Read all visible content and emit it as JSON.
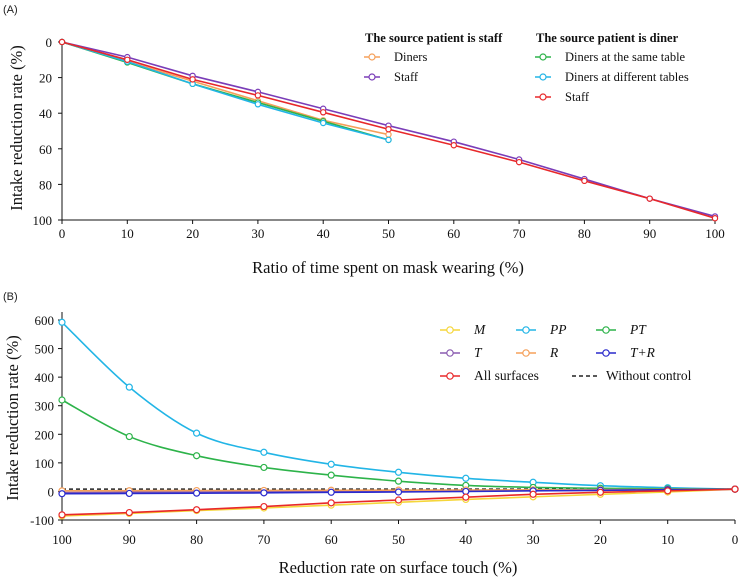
{
  "chart_data": [
    {
      "panel_label": "(A)",
      "type": "line",
      "xlabel": "Ratio of time spent on mask wearing  (%)",
      "ylabel": "Intake reduction rate (%)",
      "xlim": [
        0,
        100
      ],
      "ylim": [
        0,
        100
      ],
      "y_inverted": true,
      "xticks": [
        0,
        10,
        20,
        30,
        40,
        50,
        60,
        70,
        80,
        90,
        100
      ],
      "yticks": [
        0,
        20,
        40,
        60,
        80,
        100
      ],
      "legend_groups": [
        {
          "title": "The source patient is staff",
          "entries": [
            "Diners",
            "Staff"
          ]
        },
        {
          "title": "The source patient is diner",
          "entries": [
            "Diners at the same table",
            "Diners at different tables",
            "Staff"
          ]
        }
      ],
      "series": [
        {
          "name": "Diners",
          "group": "The source patient is staff",
          "color": "#f5a05a",
          "x": [
            0,
            10,
            20,
            30,
            40,
            50
          ],
          "y": [
            0,
            11,
            22,
            33,
            44,
            52
          ]
        },
        {
          "name": "Staff",
          "group": "The source patient is staff",
          "color": "#7a3db8",
          "x": [
            0,
            10,
            20,
            30,
            40,
            50,
            60,
            70,
            80,
            90,
            100
          ],
          "y": [
            0,
            8.5,
            19,
            28,
            37.5,
            47,
            56,
            66,
            77,
            88,
            98
          ]
        },
        {
          "name": "Diners at the same table",
          "group": "The source patient is diner",
          "color": "#2db34a",
          "x": [
            0,
            10,
            20,
            30,
            40,
            50
          ],
          "y": [
            0,
            11.5,
            23.5,
            34,
            44.5,
            55
          ]
        },
        {
          "name": "Diners at different tables",
          "group": "The source patient is diner",
          "color": "#22b5e6",
          "x": [
            0,
            10,
            20,
            30,
            40,
            50
          ],
          "y": [
            0,
            11,
            23.5,
            35,
            45.5,
            55
          ]
        },
        {
          "name": "Staff",
          "group": "The source patient is diner",
          "color": "#e8282a",
          "x": [
            0,
            10,
            20,
            30,
            40,
            50,
            60,
            70,
            80,
            90,
            100
          ],
          "y": [
            0,
            10,
            21,
            30,
            39.5,
            49,
            58,
            67.5,
            78,
            88,
            99
          ]
        }
      ]
    },
    {
      "panel_label": "(B)",
      "type": "line",
      "xlabel": "Reduction rate on surface touch (%)",
      "ylabel": "Intake reduction rate (%)",
      "xlim": [
        100,
        0
      ],
      "ylim": [
        -100,
        600
      ],
      "xticks": [
        100,
        90,
        80,
        70,
        60,
        50,
        40,
        30,
        20,
        10,
        0
      ],
      "yticks": [
        600,
        500,
        400,
        300,
        200,
        100,
        0,
        -100
      ],
      "series": [
        {
          "name": "M",
          "italic": true,
          "color": "#f5d63a",
          "x": [
            100,
            90,
            80,
            70,
            60,
            50,
            40,
            30,
            20,
            10,
            0
          ],
          "y": [
            -86,
            -77,
            -67,
            -58,
            -48,
            -38,
            -28,
            -19,
            -10,
            -2,
            8
          ]
        },
        {
          "name": "PP",
          "italic": true,
          "color": "#22b5e6",
          "x": [
            100,
            90,
            80,
            70,
            60,
            50,
            40,
            30,
            20,
            10,
            0
          ],
          "y": [
            592,
            365,
            204,
            137,
            95,
            67,
            46,
            32,
            20,
            13,
            8
          ]
        },
        {
          "name": "PT",
          "italic": true,
          "color": "#2db34a",
          "x": [
            100,
            90,
            80,
            70,
            60,
            50,
            40,
            30,
            20,
            10,
            0
          ],
          "y": [
            320,
            192,
            125,
            84,
            57,
            36,
            21,
            14,
            11,
            9,
            8
          ]
        },
        {
          "name": "T",
          "italic": true,
          "color": "#8a5cb0",
          "x": [
            100,
            90,
            80,
            70,
            60,
            50,
            40,
            30,
            20,
            10,
            0
          ],
          "y": [
            -4,
            -3,
            -2,
            -1,
            0,
            1,
            2,
            3,
            4,
            6,
            8
          ]
        },
        {
          "name": "R",
          "italic": true,
          "color": "#f5a05a",
          "x": [
            100,
            90,
            80,
            70,
            60,
            50,
            40,
            30,
            20,
            10,
            0
          ],
          "y": [
            2,
            2.5,
            3,
            3.5,
            4,
            4.5,
            5,
            5.5,
            6,
            7,
            8
          ]
        },
        {
          "name": "T+R",
          "italic": true,
          "color": "#2a2acc",
          "x": [
            100,
            90,
            80,
            70,
            60,
            50,
            40,
            30,
            20,
            10,
            0
          ],
          "y": [
            -8,
            -7,
            -6,
            -5,
            -3,
            -2,
            0,
            2,
            4,
            6,
            8
          ]
        },
        {
          "name": "All surfaces",
          "italic": false,
          "color": "#e8282a",
          "x": [
            100,
            90,
            80,
            70,
            60,
            50,
            40,
            30,
            20,
            10,
            0
          ],
          "y": [
            -82,
            -74,
            -64,
            -53,
            -40,
            -30,
            -20,
            -10,
            -3,
            2,
            8
          ]
        },
        {
          "name": "Without control",
          "italic": false,
          "color": "#222222",
          "dashed": true,
          "x": [
            100,
            0
          ],
          "y": [
            8,
            8
          ]
        }
      ]
    }
  ]
}
